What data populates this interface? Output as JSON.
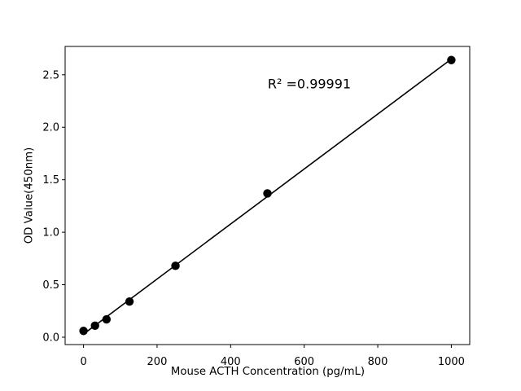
{
  "figure": {
    "background": "#ffffff"
  },
  "chart_data": {
    "type": "scatter",
    "title": "",
    "xlabel": "Mouse ACTH Concentration (pg/mL)",
    "ylabel": "OD Value(450nm)",
    "x": [
      0,
      31.25,
      62.5,
      125,
      250,
      500,
      1000
    ],
    "y": [
      0.06,
      0.11,
      0.17,
      0.34,
      0.68,
      1.37,
      2.64
    ],
    "fit_line": true,
    "annotation": "R² =0.99991",
    "xlim": [
      -50,
      1050
    ],
    "ylim": [
      -0.07,
      2.77
    ],
    "xticks": [
      0,
      200,
      400,
      600,
      800,
      1000
    ],
    "yticks": [
      "0.0",
      "0.5",
      "1.0",
      "1.5",
      "2.0",
      "2.5"
    ],
    "grid": false,
    "legend": null,
    "marker_color": "#000000",
    "line_color": "#000000",
    "axis_color": "#000000",
    "text_color": "#000000",
    "marker_radius": 5.2,
    "line_width": 1.6
  }
}
